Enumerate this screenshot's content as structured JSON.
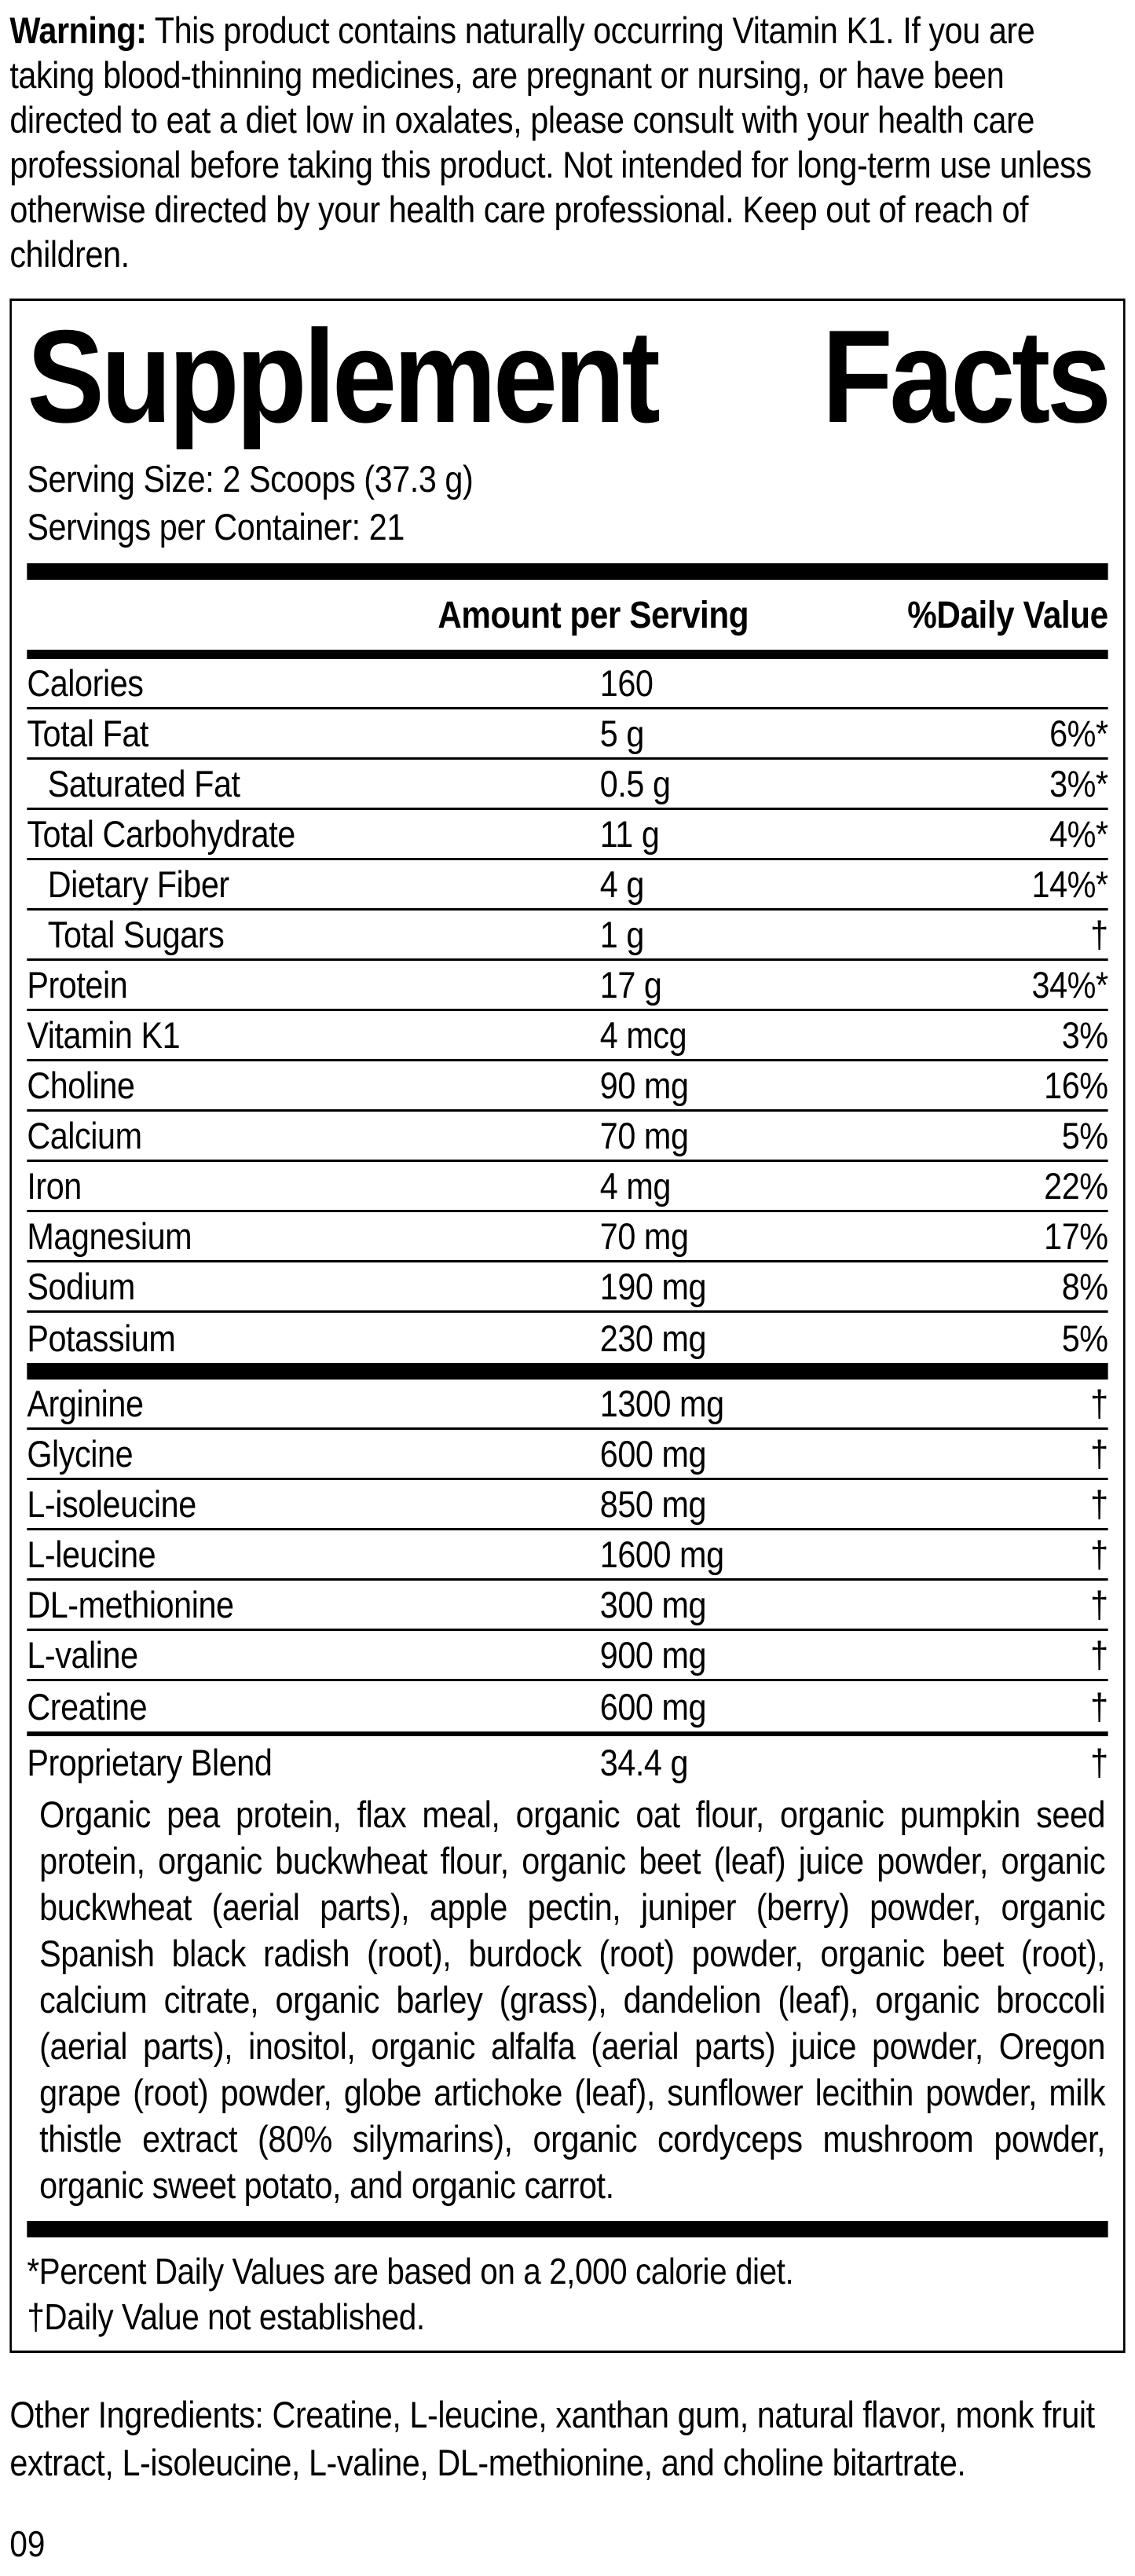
{
  "warning": {
    "label": "Warning:",
    "text": " This product contains naturally occurring Vitamin K1. If you are taking blood-thinning medicines, are pregnant or nursing, or have been directed to eat a diet low in oxalates, please consult with your health care professional before taking this product. Not intended for long-term use unless otherwise directed by your health care professional. Keep out of reach of children."
  },
  "panel": {
    "title": {
      "left": "Supplement",
      "right": "Facts"
    },
    "serving_size": "Serving Size: 2 Scoops (37.3 g)",
    "servings_per_container": "Servings per Container: 21",
    "columns": {
      "amount": "Amount per Serving",
      "daily_value": "%Daily Value"
    },
    "nutrients": [
      {
        "name": "Calories",
        "amount": "160",
        "dv": ""
      },
      {
        "name": "Total Fat",
        "amount": "5 g",
        "dv": "6%*"
      },
      {
        "name": "Saturated Fat",
        "amount": "0.5 g",
        "dv": "3%*",
        "indent": true
      },
      {
        "name": "Total Carbohydrate",
        "amount": "11 g",
        "dv": "4%*"
      },
      {
        "name": "Dietary Fiber",
        "amount": "4 g",
        "dv": "14%*",
        "indent": true
      },
      {
        "name": "Total Sugars",
        "amount": "1 g",
        "dv": "†",
        "indent": true
      },
      {
        "name": "Protein",
        "amount": "17 g",
        "dv": "34%*"
      },
      {
        "name": "Vitamin K1",
        "amount": "4 mcg",
        "dv": "3%"
      },
      {
        "name": "Choline",
        "amount": "90 mg",
        "dv": "16%"
      },
      {
        "name": "Calcium",
        "amount": "70 mg",
        "dv": "5%"
      },
      {
        "name": "Iron",
        "amount": "4 mg",
        "dv": "22%"
      },
      {
        "name": "Magnesium",
        "amount": "70 mg",
        "dv": "17%"
      },
      {
        "name": "Sodium",
        "amount": "190 mg",
        "dv": "8%"
      },
      {
        "name": "Potassium",
        "amount": "230 mg",
        "dv": "5%"
      }
    ],
    "amino_acids": [
      {
        "name": "Arginine",
        "amount": "1300 mg",
        "dv": "†"
      },
      {
        "name": "Glycine",
        "amount": "600 mg",
        "dv": "†"
      },
      {
        "name": "L-isoleucine",
        "amount": "850 mg",
        "dv": "†"
      },
      {
        "name": "L-leucine",
        "amount": "1600 mg",
        "dv": "†"
      },
      {
        "name": "DL-methionine",
        "amount": "300 mg",
        "dv": "†"
      },
      {
        "name": "L-valine",
        "amount": "900 mg",
        "dv": "†"
      },
      {
        "name": "Creatine",
        "amount": "600 mg",
        "dv": "†"
      }
    ],
    "proprietary_blend": {
      "name": "Proprietary Blend",
      "amount": "34.4 g",
      "dv": "†"
    },
    "blend_ingredients": "Organic pea protein, flax meal, organic oat flour, organic pumpkin seed protein, organic buckwheat flour, organic beet (leaf) juice powder, organic buckwheat (aerial parts), apple pectin, juniper (berry) powder, organic Spanish black radish (root), burdock (root) powder, organic beet (root), calcium citrate, organic barley (grass), dandelion (leaf), organic broccoli (aerial parts), inositol, organic alfalfa (aerial parts) juice powder, Oregon grape (root) powder, globe artichoke (leaf), sunflower lecithin powder, milk thistle extract (80% silymarins), organic cordyceps mushroom powder, organic sweet potato, and organic carrot.",
    "footnotes": {
      "percent": "*Percent Daily Values are based on a 2,000 calorie diet.",
      "dagger": "†Daily Value not established."
    }
  },
  "other_ingredients": "Other Ingredients: Creatine, L-leucine, xanthan gum, natural flavor, monk fruit extract, L-isoleucine, L-valine, DL-methionine, and choline bitartrate.",
  "page_number": "09"
}
